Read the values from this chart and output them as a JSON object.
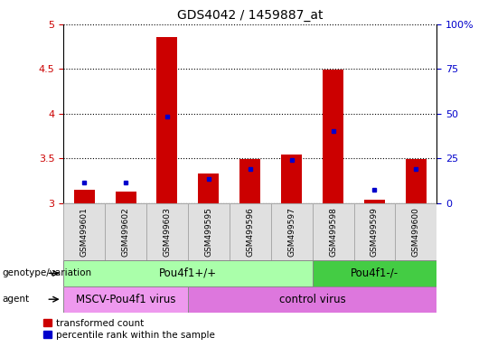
{
  "title": "GDS4042 / 1459887_at",
  "samples": [
    "GSM499601",
    "GSM499602",
    "GSM499603",
    "GSM499595",
    "GSM499596",
    "GSM499597",
    "GSM499598",
    "GSM499599",
    "GSM499600"
  ],
  "red_values": [
    3.15,
    3.13,
    4.86,
    3.33,
    3.49,
    3.54,
    4.49,
    3.04,
    3.49
  ],
  "blue_values": [
    3.23,
    3.23,
    3.97,
    3.27,
    3.38,
    3.48,
    3.81,
    3.15,
    3.38
  ],
  "y_min": 3.0,
  "y_max": 5.0,
  "y_ticks": [
    3.0,
    3.5,
    4.0,
    4.5,
    5.0
  ],
  "right_y_ticks_pct": [
    0,
    25,
    50,
    75,
    100
  ],
  "right_y_labels": [
    "0",
    "25",
    "50",
    "75",
    "100%"
  ],
  "genotype_groups": [
    {
      "label": "Pou4f1+/+",
      "start": 0,
      "end": 6,
      "color": "#aaffaa"
    },
    {
      "label": "Pou4f1-/-",
      "start": 6,
      "end": 9,
      "color": "#44cc44"
    }
  ],
  "agent_groups": [
    {
      "label": "MSCV-Pou4f1 virus",
      "start": 0,
      "end": 3,
      "color": "#ee99ee"
    },
    {
      "label": "control virus",
      "start": 3,
      "end": 9,
      "color": "#dd77dd"
    }
  ],
  "legend_red": "transformed count",
  "legend_blue": "percentile rank within the sample",
  "bar_width": 0.5,
  "red_color": "#cc0000",
  "blue_color": "#0000cc",
  "tick_color": "#cc0000",
  "right_tick_color": "#0000cc",
  "bg_color": "#ffffff"
}
